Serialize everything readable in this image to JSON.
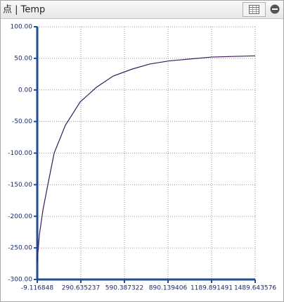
{
  "chart_data": {
    "type": "line",
    "title": "点 | Temp",
    "x": [
      -9.116848,
      5,
      30,
      68,
      107,
      184,
      286,
      397,
      513,
      644,
      765,
      900,
      1045,
      1190,
      1335,
      1489.643576
    ],
    "series": [
      {
        "color": "#3b1a5a",
        "values": [
          -272,
          -230,
          -190,
          -145,
          -100,
          -56,
          -19,
          4,
          22,
          33,
          41,
          46,
          49,
          52,
          53,
          54
        ]
      }
    ],
    "xlim": [
      -9.116848,
      1489.643576
    ],
    "xticks": [
      -9.116848,
      290.635237,
      590.387322,
      890.139406,
      1189.891491,
      1489.643576
    ],
    "ylim": [
      -300,
      100
    ],
    "yticks": [
      {
        "value": -300,
        "label": "-300.00"
      },
      {
        "value": -250,
        "label": "-250.00"
      },
      {
        "value": -200,
        "label": "-200.00"
      },
      {
        "value": -150,
        "label": "-150.00"
      },
      {
        "value": -100,
        "label": "-100.00"
      },
      {
        "value": -50,
        "label": "-50.00"
      },
      {
        "value": 0,
        "label": "0.00"
      },
      {
        "value": 50,
        "label": "50.00"
      },
      {
        "value": 100,
        "label": "100.00"
      }
    ],
    "grid": true
  }
}
